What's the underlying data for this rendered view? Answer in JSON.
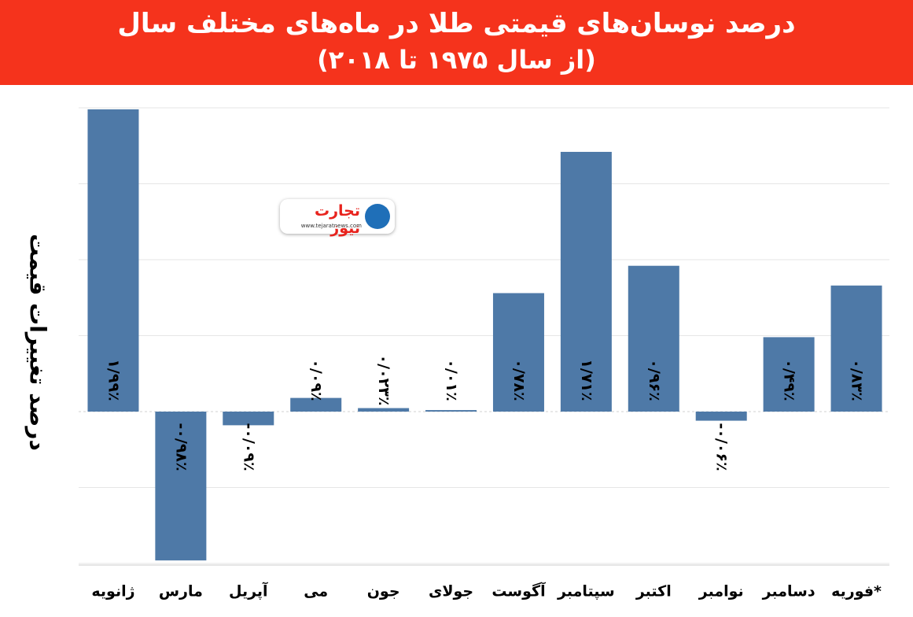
{
  "header": {
    "title": "درصد نوسان‌های قیمتی طلا در ماه‌های مختلف سال",
    "subtitle": "(از سال ۱۹۷۵ تا ۲۰۱۸)"
  },
  "watermark": {
    "text": "تجارت نیوز",
    "url": "www.tejaratnews.com"
  },
  "colors": {
    "header_bg": "#f5331c",
    "bar": "#4e79a7",
    "gridline": "#e6e6e6",
    "label": "#000000"
  },
  "chart_data": {
    "type": "bar",
    "title": "درصد نوسان‌های قیمتی طلا در ماه‌های مختلف سال",
    "subtitle": "(از سال ۱۹۷۵ تا ۲۰۱۸)",
    "xlabel": "",
    "ylabel": "درصد تغییرات قیمت",
    "categories": [
      "ژانویه",
      "*فوریه",
      "مارس",
      "آپریل",
      "می",
      "جون",
      "جولای",
      "آگوست",
      "سپتامبر",
      "اکتبر",
      "نوامبر",
      "دسامبر"
    ],
    "display_order": [
      "ژانویه",
      "مارس",
      "آپریل",
      "می",
      "جون",
      "جولای",
      "آگوست",
      "سپتامبر",
      "اکتبر",
      "نوامبر",
      "دسامبر",
      "*فوریه"
    ],
    "values": [
      1.99,
      0.83,
      -0.98,
      -0.09,
      0.09,
      0.023,
      0.01,
      0.78,
      1.71,
      0.96,
      -0.06,
      0.49
    ],
    "data_labels": [
      "۱/۹۹٪",
      "۰/۸۳٪",
      "-۰/۹۸٪",
      "-۰/۰۹٪",
      "۰/۰۹٪",
      "۰/۰۲۳٪",
      "۰/۰۱٪",
      "۰/۷۸٪",
      "۱/۷۱٪",
      "۰/۹۶٪",
      "-۰/۰۶٪",
      "۰/۴۹٪"
    ],
    "ylim": [
      -1.0,
      2.0
    ],
    "grid": true,
    "legend": "none"
  }
}
